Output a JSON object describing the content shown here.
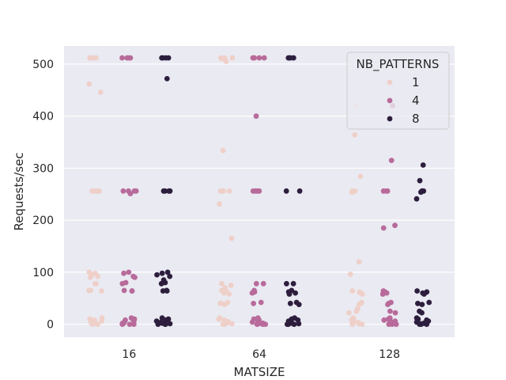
{
  "chart_data": {
    "type": "scatter",
    "xlabel": "MATSIZE",
    "ylabel": "Requests/sec",
    "categories": [
      "16",
      "64",
      "128"
    ],
    "ylim": [
      -25,
      535
    ],
    "yticks": [
      "0",
      "100",
      "200",
      "300",
      "400",
      "500"
    ],
    "grid": true,
    "legend_placement": "top-right",
    "legend_title": "NB_PATTERNS",
    "series": [
      {
        "name": "1",
        "color": "#efd0c9",
        "points": [
          [
            "16",
            512
          ],
          [
            "16",
            512
          ],
          [
            "16",
            512
          ],
          [
            "16",
            512
          ],
          [
            "16",
            512
          ],
          [
            "16",
            512
          ],
          [
            "16",
            462
          ],
          [
            "16",
            446
          ],
          [
            "16",
            256
          ],
          [
            "16",
            256
          ],
          [
            "16",
            256
          ],
          [
            "16",
            256
          ],
          [
            "16",
            256
          ],
          [
            "16",
            100
          ],
          [
            "16",
            98
          ],
          [
            "16",
            95
          ],
          [
            "16",
            92
          ],
          [
            "16",
            90
          ],
          [
            "16",
            78
          ],
          [
            "16",
            78
          ],
          [
            "16",
            65
          ],
          [
            "16",
            65
          ],
          [
            "16",
            64
          ],
          [
            "16",
            12
          ],
          [
            "16",
            10
          ],
          [
            "16",
            8
          ],
          [
            "16",
            6
          ],
          [
            "16",
            4
          ],
          [
            "16",
            2
          ],
          [
            "16",
            1
          ],
          [
            "16",
            0
          ],
          [
            "16",
            0
          ],
          [
            "64",
            512
          ],
          [
            "64",
            512
          ],
          [
            "64",
            512
          ],
          [
            "64",
            510
          ],
          [
            "64",
            505
          ],
          [
            "64",
            334
          ],
          [
            "64",
            256
          ],
          [
            "64",
            256
          ],
          [
            "64",
            256
          ],
          [
            "64",
            256
          ],
          [
            "64",
            231
          ],
          [
            "64",
            165
          ],
          [
            "64",
            78
          ],
          [
            "64",
            75
          ],
          [
            "64",
            70
          ],
          [
            "64",
            65
          ],
          [
            "64",
            62
          ],
          [
            "64",
            60
          ],
          [
            "64",
            58
          ],
          [
            "64",
            42
          ],
          [
            "64",
            40
          ],
          [
            "64",
            40
          ],
          [
            "64",
            38
          ],
          [
            "64",
            12
          ],
          [
            "64",
            10
          ],
          [
            "64",
            8
          ],
          [
            "64",
            5
          ],
          [
            "64",
            3
          ],
          [
            "64",
            1
          ],
          [
            "64",
            0
          ],
          [
            "64",
            0
          ],
          [
            "128",
            420
          ],
          [
            "128",
            364
          ],
          [
            "128",
            284
          ],
          [
            "128",
            256
          ],
          [
            "128",
            256
          ],
          [
            "128",
            256
          ],
          [
            "128",
            254
          ],
          [
            "128",
            120
          ],
          [
            "128",
            96
          ],
          [
            "128",
            64
          ],
          [
            "128",
            62
          ],
          [
            "128",
            60
          ],
          [
            "128",
            58
          ],
          [
            "128",
            42
          ],
          [
            "128",
            40
          ],
          [
            "128",
            38
          ],
          [
            "128",
            30
          ],
          [
            "128",
            25
          ],
          [
            "128",
            22
          ],
          [
            "128",
            12
          ],
          [
            "128",
            10
          ],
          [
            "128",
            8
          ],
          [
            "128",
            5
          ],
          [
            "128",
            3
          ],
          [
            "128",
            1
          ],
          [
            "128",
            0
          ],
          [
            "128",
            0
          ]
        ]
      },
      {
        "name": "4",
        "color": "#b86b9b",
        "points": [
          [
            "16",
            512
          ],
          [
            "16",
            512
          ],
          [
            "16",
            512
          ],
          [
            "16",
            512
          ],
          [
            "16",
            256
          ],
          [
            "16",
            256
          ],
          [
            "16",
            256
          ],
          [
            "16",
            256
          ],
          [
            "16",
            251
          ],
          [
            "16",
            100
          ],
          [
            "16",
            98
          ],
          [
            "16",
            92
          ],
          [
            "16",
            90
          ],
          [
            "16",
            80
          ],
          [
            "16",
            78
          ],
          [
            "16",
            65
          ],
          [
            "16",
            64
          ],
          [
            "16",
            64
          ],
          [
            "16",
            12
          ],
          [
            "16",
            10
          ],
          [
            "16",
            8
          ],
          [
            "16",
            6
          ],
          [
            "16",
            4
          ],
          [
            "16",
            2
          ],
          [
            "16",
            1
          ],
          [
            "16",
            0
          ],
          [
            "16",
            0
          ],
          [
            "16",
            0
          ],
          [
            "64",
            512
          ],
          [
            "64",
            512
          ],
          [
            "64",
            512
          ],
          [
            "64",
            512
          ],
          [
            "64",
            400
          ],
          [
            "64",
            256
          ],
          [
            "64",
            256
          ],
          [
            "64",
            256
          ],
          [
            "64",
            256
          ],
          [
            "64",
            78
          ],
          [
            "64",
            78
          ],
          [
            "64",
            65
          ],
          [
            "64",
            62
          ],
          [
            "64",
            60
          ],
          [
            "64",
            42
          ],
          [
            "64",
            40
          ],
          [
            "64",
            12
          ],
          [
            "64",
            10
          ],
          [
            "64",
            8
          ],
          [
            "64",
            6
          ],
          [
            "64",
            4
          ],
          [
            "64",
            2
          ],
          [
            "64",
            1
          ],
          [
            "64",
            0
          ],
          [
            "64",
            0
          ],
          [
            "64",
            0
          ],
          [
            "128",
            420
          ],
          [
            "128",
            315
          ],
          [
            "128",
            256
          ],
          [
            "128",
            256
          ],
          [
            "128",
            256
          ],
          [
            "128",
            190
          ],
          [
            "128",
            185
          ],
          [
            "128",
            64
          ],
          [
            "128",
            62
          ],
          [
            "128",
            60
          ],
          [
            "128",
            58
          ],
          [
            "128",
            42
          ],
          [
            "128",
            40
          ],
          [
            "128",
            38
          ],
          [
            "128",
            25
          ],
          [
            "128",
            22
          ],
          [
            "128",
            12
          ],
          [
            "128",
            10
          ],
          [
            "128",
            8
          ],
          [
            "128",
            6
          ],
          [
            "128",
            4
          ],
          [
            "128",
            2
          ],
          [
            "128",
            1
          ],
          [
            "128",
            0
          ],
          [
            "128",
            0
          ],
          [
            "128",
            0
          ]
        ]
      },
      {
        "name": "8",
        "color": "#2d1e3e",
        "points": [
          [
            "16",
            512
          ],
          [
            "16",
            512
          ],
          [
            "16",
            512
          ],
          [
            "16",
            512
          ],
          [
            "16",
            472
          ],
          [
            "16",
            256
          ],
          [
            "16",
            256
          ],
          [
            "16",
            256
          ],
          [
            "16",
            256
          ],
          [
            "16",
            100
          ],
          [
            "16",
            98
          ],
          [
            "16",
            95
          ],
          [
            "16",
            92
          ],
          [
            "16",
            85
          ],
          [
            "16",
            80
          ],
          [
            "16",
            78
          ],
          [
            "16",
            65
          ],
          [
            "16",
            64
          ],
          [
            "16",
            64
          ],
          [
            "16",
            12
          ],
          [
            "16",
            10
          ],
          [
            "16",
            8
          ],
          [
            "16",
            6
          ],
          [
            "16",
            4
          ],
          [
            "16",
            2
          ],
          [
            "16",
            1
          ],
          [
            "16",
            0
          ],
          [
            "16",
            0
          ],
          [
            "16",
            0
          ],
          [
            "64",
            512
          ],
          [
            "64",
            512
          ],
          [
            "64",
            512
          ],
          [
            "64",
            512
          ],
          [
            "64",
            256
          ],
          [
            "64",
            256
          ],
          [
            "64",
            78
          ],
          [
            "64",
            78
          ],
          [
            "64",
            65
          ],
          [
            "64",
            62
          ],
          [
            "64",
            60
          ],
          [
            "64",
            58
          ],
          [
            "64",
            42
          ],
          [
            "64",
            40
          ],
          [
            "64",
            38
          ],
          [
            "64",
            12
          ],
          [
            "64",
            10
          ],
          [
            "64",
            8
          ],
          [
            "64",
            6
          ],
          [
            "64",
            4
          ],
          [
            "64",
            2
          ],
          [
            "64",
            1
          ],
          [
            "64",
            0
          ],
          [
            "64",
            0
          ],
          [
            "64",
            0
          ],
          [
            "128",
            306
          ],
          [
            "128",
            276
          ],
          [
            "128",
            256
          ],
          [
            "128",
            256
          ],
          [
            "128",
            254
          ],
          [
            "128",
            241
          ],
          [
            "128",
            64
          ],
          [
            "128",
            62
          ],
          [
            "128",
            60
          ],
          [
            "128",
            58
          ],
          [
            "128",
            42
          ],
          [
            "128",
            40
          ],
          [
            "128",
            38
          ],
          [
            "128",
            25
          ],
          [
            "128",
            22
          ],
          [
            "128",
            12
          ],
          [
            "128",
            10
          ],
          [
            "128",
            8
          ],
          [
            "128",
            6
          ],
          [
            "128",
            4
          ],
          [
            "128",
            2
          ],
          [
            "128",
            1
          ],
          [
            "128",
            0
          ],
          [
            "128",
            0
          ],
          [
            "128",
            0
          ]
        ]
      }
    ]
  }
}
